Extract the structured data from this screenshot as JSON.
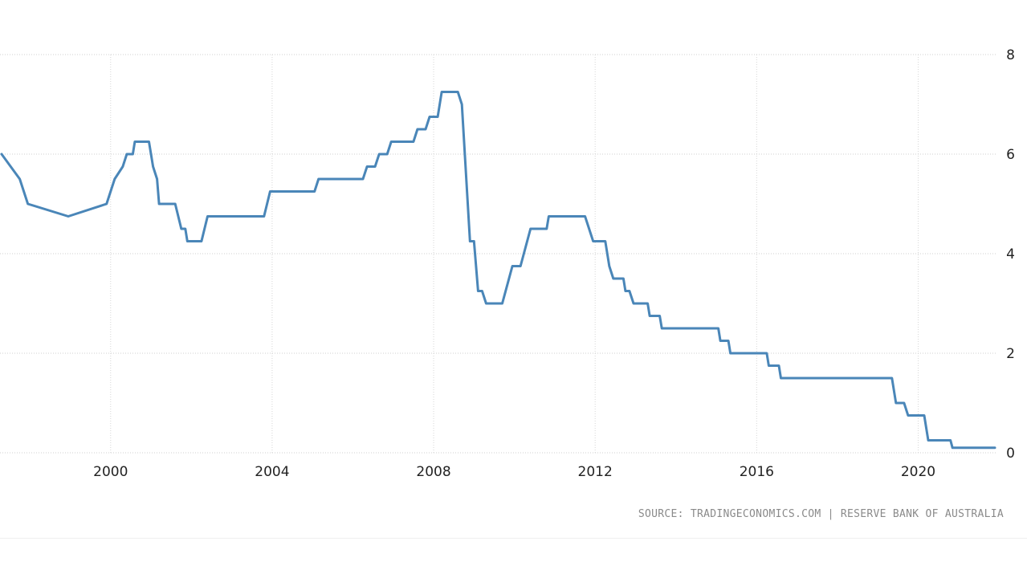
{
  "chart_data": {
    "type": "line",
    "title": "",
    "xlabel": "",
    "ylabel": "",
    "xlim": [
      1997.3,
      2021.9
    ],
    "ylim": [
      0,
      8
    ],
    "x_ticks": [
      "2000",
      "2004",
      "2008",
      "2012",
      "2016",
      "2020"
    ],
    "y_ticks": [
      "8",
      "6",
      "4",
      "2",
      "0"
    ],
    "grid": true,
    "legend": "none",
    "line_color": "#4a86b8",
    "series": [
      {
        "x": [
          1997.3,
          1997.75,
          1997.95,
          1998.95,
          1999.9,
          2000.1,
          2000.3,
          2000.4,
          2000.55,
          2000.6,
          2000.95,
          2001.05,
          2001.15,
          2001.2,
          2001.6,
          2001.75,
          2001.85,
          2001.9,
          2002.25,
          2002.4,
          2002.45,
          2003.8,
          2003.95,
          2005.05,
          2005.15,
          2006.25,
          2006.35,
          2006.55,
          2006.65,
          2006.85,
          2006.95,
          2007.5,
          2007.6,
          2007.8,
          2007.9,
          2008.1,
          2008.2,
          2008.6,
          2008.7,
          2008.9,
          2009.0,
          2009.1,
          2009.2,
          2009.3,
          2009.7,
          2009.95,
          2010.15,
          2010.4,
          2010.8,
          2010.85,
          2011.75,
          2011.95,
          2012.25,
          2012.35,
          2012.45,
          2012.7,
          2012.75,
          2012.85,
          2012.95,
          2013.3,
          2013.35,
          2013.6,
          2013.65,
          2015.05,
          2015.1,
          2015.3,
          2015.35,
          2016.25,
          2016.3,
          2016.55,
          2016.6,
          2019.35,
          2019.45,
          2019.65,
          2019.75,
          2020.15,
          2020.25,
          2020.8,
          2020.85,
          2021.9
        ],
        "y": [
          6.0,
          5.5,
          5.0,
          4.75,
          5.0,
          5.5,
          5.75,
          6.0,
          6.0,
          6.25,
          6.25,
          5.75,
          5.5,
          5.0,
          5.0,
          4.5,
          4.5,
          4.25,
          4.25,
          4.75,
          4.75,
          4.75,
          5.25,
          5.25,
          5.5,
          5.5,
          5.75,
          5.75,
          6.0,
          6.0,
          6.25,
          6.25,
          6.5,
          6.5,
          6.75,
          6.75,
          7.25,
          7.25,
          7.0,
          4.25,
          4.25,
          3.25,
          3.25,
          3.0,
          3.0,
          3.75,
          3.75,
          4.5,
          4.5,
          4.75,
          4.75,
          4.25,
          4.25,
          3.75,
          3.5,
          3.5,
          3.25,
          3.25,
          3.0,
          3.0,
          2.75,
          2.75,
          2.5,
          2.5,
          2.25,
          2.25,
          2.0,
          2.0,
          1.75,
          1.75,
          1.5,
          1.5,
          1.0,
          1.0,
          0.75,
          0.75,
          0.25,
          0.25,
          0.1,
          0.1
        ]
      }
    ]
  },
  "source_text": "SOURCE: TRADINGECONOMICS.COM | RESERVE BANK OF AUSTRALIA"
}
